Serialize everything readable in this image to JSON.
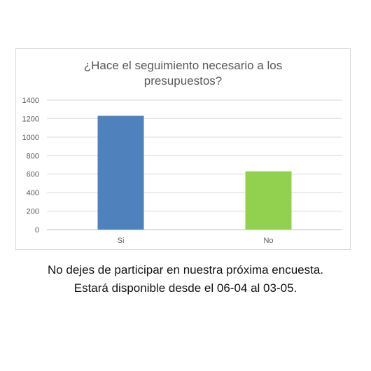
{
  "chart_data": {
    "type": "bar",
    "title": "¿Hace el seguimiento necesario a los presupuestos?",
    "title_lines": [
      "¿Hace el seguimiento necesario a los",
      "presupuestos?"
    ],
    "categories": [
      "Si",
      "No"
    ],
    "values": [
      1230,
      630
    ],
    "colors": [
      "#4f81bd",
      "#92d050"
    ],
    "ylim": [
      0,
      1400
    ],
    "yticks": [
      0,
      200,
      400,
      600,
      800,
      1000,
      1200,
      1400
    ],
    "xlabel": "",
    "ylabel": "",
    "grid": true,
    "legend": "none"
  },
  "caption": {
    "line1": "No dejes de participar en nuestra próxima encuesta.",
    "line2": "Estará disponible desde el 06-04 al 03-05."
  }
}
